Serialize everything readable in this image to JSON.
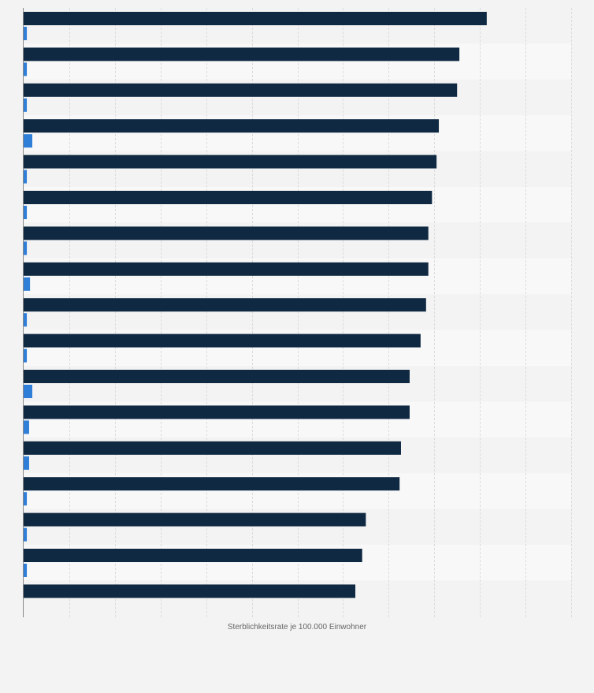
{
  "chart_data": {
    "type": "bar",
    "orientation": "horizontal",
    "title": "",
    "xlabel": "Sterblichkeitsrate je 100.000 Einwohner",
    "ylabel": "",
    "xlim": [
      0,
      12
    ],
    "grid": "vertical-dashed",
    "legend": "none",
    "tick_labels_visible": false,
    "categories": [
      "",
      "",
      "",
      "",
      "",
      "",
      "",
      "",
      "",
      "",
      "",
      "",
      "",
      "",
      "",
      "",
      ""
    ],
    "series": [
      {
        "color": "#0f2942",
        "values": [
          10.15,
          9.55,
          9.5,
          9.1,
          9.05,
          8.95,
          8.87,
          8.87,
          8.82,
          8.7,
          8.46,
          8.46,
          8.27,
          8.24,
          7.5,
          7.42,
          7.27
        ]
      },
      {
        "color": "#2f7ed8",
        "values": [
          0.07,
          0.07,
          0.07,
          0.19,
          0.07,
          0.07,
          0.07,
          0.14,
          0.07,
          0.07,
          0.19,
          0.12,
          0.12,
          0.07,
          0.07,
          0.07,
          0
        ]
      }
    ]
  }
}
